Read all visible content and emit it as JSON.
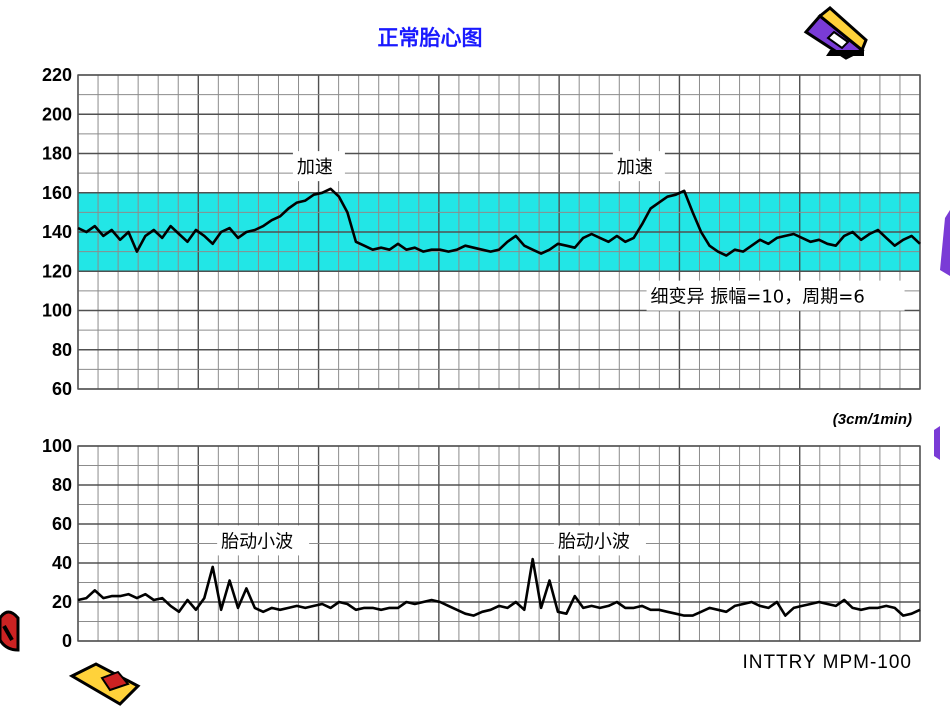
{
  "title": "正常胎心图",
  "device_label": "INTTRY  MPM-100",
  "speed_label": "(3cm/1min)",
  "colors": {
    "band": "#22e6e6",
    "trace": "#000000",
    "title": "#1a1aff",
    "grid": "#8c8c8c"
  },
  "icons": [
    "pencil-clipart-icon",
    "pencil-clipart-bottom-icon"
  ],
  "chart_data": [
    {
      "type": "line",
      "title": "",
      "xlabel": "",
      "ylabel": "",
      "ylim": [
        60,
        220
      ],
      "yticks": [
        60,
        80,
        100,
        120,
        140,
        160,
        180,
        200,
        220
      ],
      "xlim": [
        0,
        100
      ],
      "band": [
        120,
        160
      ],
      "grid": true,
      "annotations": [
        {
          "text": "加速",
          "x": 26,
          "y": 170
        },
        {
          "text": "加速",
          "x": 64,
          "y": 170
        },
        {
          "text": "细变异    振幅=10，周期=6",
          "x": 68,
          "y": 104
        }
      ],
      "series": [
        {
          "name": "",
          "x": [
            0,
            1,
            2,
            3,
            4,
            5,
            6,
            7,
            8,
            9,
            10,
            11,
            12,
            13,
            14,
            15,
            16,
            17,
            18,
            19,
            20,
            21,
            22,
            23,
            24,
            25,
            26,
            27,
            28,
            29,
            30,
            31,
            32,
            33,
            34,
            35,
            36,
            37,
            38,
            39,
            40,
            41,
            42,
            43,
            44,
            45,
            46,
            47,
            48,
            49,
            50,
            51,
            52,
            53,
            54,
            55,
            56,
            57,
            58,
            59,
            60,
            61,
            62,
            63,
            64,
            65,
            66,
            67,
            68,
            69,
            70,
            71,
            72,
            73,
            74,
            75,
            76,
            77,
            78,
            79,
            80,
            81,
            82,
            83,
            84,
            85,
            86,
            87,
            88,
            89,
            90,
            91,
            92,
            93,
            94,
            95,
            96,
            97,
            98,
            99,
            100
          ],
          "y": [
            142,
            140,
            143,
            138,
            141,
            136,
            140,
            130,
            138,
            141,
            137,
            143,
            139,
            135,
            141,
            138,
            134,
            140,
            142,
            137,
            140,
            141,
            143,
            146,
            148,
            152,
            155,
            156,
            159,
            160,
            162,
            158,
            150,
            135,
            133,
            131,
            132,
            131,
            134,
            131,
            132,
            130,
            131,
            131,
            130,
            131,
            133,
            132,
            131,
            130,
            131,
            135,
            138,
            133,
            131,
            129,
            131,
            134,
            133,
            132,
            137,
            139,
            137,
            135,
            138,
            135,
            137,
            144,
            152,
            155,
            158,
            159,
            161,
            150,
            140,
            133,
            130,
            128,
            131,
            130,
            133,
            136,
            134,
            137,
            138,
            139,
            137,
            135,
            136,
            134,
            133,
            138,
            140,
            136,
            139,
            141,
            137,
            133,
            136,
            138,
            134
          ]
        }
      ]
    },
    {
      "type": "line",
      "title": "",
      "xlabel": "",
      "ylabel": "",
      "ylim": [
        0,
        100
      ],
      "yticks": [
        0,
        20,
        40,
        60,
        80,
        100
      ],
      "xlim": [
        0,
        100
      ],
      "grid": true,
      "annotations": [
        {
          "text": "胎动小波",
          "x": 17,
          "y": 48
        },
        {
          "text": "胎动小波",
          "x": 57,
          "y": 48
        }
      ],
      "series": [
        {
          "name": "",
          "x": [
            0,
            1,
            2,
            3,
            4,
            5,
            6,
            7,
            8,
            9,
            10,
            11,
            12,
            13,
            14,
            15,
            16,
            17,
            18,
            19,
            20,
            21,
            22,
            23,
            24,
            25,
            26,
            27,
            28,
            29,
            30,
            31,
            32,
            33,
            34,
            35,
            36,
            37,
            38,
            39,
            40,
            41,
            42,
            43,
            44,
            45,
            46,
            47,
            48,
            49,
            50,
            51,
            52,
            53,
            54,
            55,
            56,
            57,
            58,
            59,
            60,
            61,
            62,
            63,
            64,
            65,
            66,
            67,
            68,
            69,
            70,
            71,
            72,
            73,
            74,
            75,
            76,
            77,
            78,
            79,
            80,
            81,
            82,
            83,
            84,
            85,
            86,
            87,
            88,
            89,
            90,
            91,
            92,
            93,
            94,
            95,
            96,
            97,
            98,
            99,
            100
          ],
          "y": [
            21,
            22,
            26,
            22,
            23,
            23,
            24,
            22,
            24,
            21,
            22,
            18,
            15,
            21,
            16,
            22,
            38,
            16,
            31,
            17,
            27,
            17,
            15,
            17,
            16,
            17,
            18,
            17,
            18,
            19,
            17,
            20,
            19,
            16,
            17,
            17,
            16,
            17,
            17,
            20,
            19,
            20,
            21,
            20,
            18,
            16,
            14,
            13,
            15,
            16,
            18,
            17,
            20,
            16,
            42,
            17,
            31,
            15,
            14,
            23,
            17,
            18,
            17,
            18,
            20,
            17,
            17,
            18,
            16,
            16,
            15,
            14,
            13,
            13,
            15,
            17,
            16,
            15,
            18,
            19,
            20,
            18,
            17,
            20,
            13,
            17,
            18,
            19,
            20,
            19,
            18,
            21,
            17,
            16,
            17,
            17,
            18,
            17,
            13,
            14,
            16
          ]
        }
      ]
    }
  ]
}
